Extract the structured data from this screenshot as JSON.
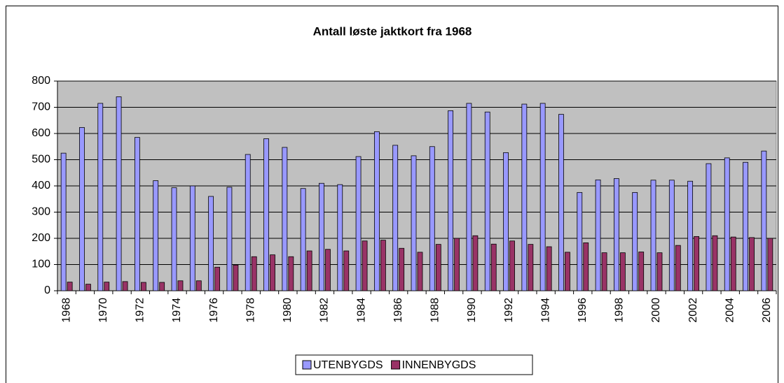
{
  "chart_data": {
    "type": "bar",
    "title": "Antall løste jaktkort fra 1968",
    "categories": [
      "1968",
      null,
      "1970",
      null,
      "1972",
      null,
      "1974",
      null,
      "1976",
      null,
      "1978",
      null,
      "1980",
      null,
      "1982",
      null,
      "1984",
      null,
      "1986",
      null,
      "1988",
      null,
      "1990",
      null,
      "1992",
      null,
      "1994",
      null,
      "1996",
      null,
      "1998",
      null,
      "2000",
      null,
      "2002",
      null,
      "2004",
      null,
      "2006"
    ],
    "series": [
      {
        "name": "UTENBYGDS",
        "color": "#9999ff",
        "values": [
          525,
          623,
          715,
          740,
          585,
          420,
          393,
          400,
          360,
          395,
          520,
          580,
          547,
          390,
          410,
          405,
          512,
          607,
          555,
          515,
          550,
          687,
          715,
          682,
          527,
          712,
          715,
          673,
          375,
          423,
          428,
          375,
          422,
          422,
          418,
          485,
          507,
          490,
          533
        ]
      },
      {
        "name": "INNENBYGDS",
        "color": "#993366",
        "values": [
          33,
          25,
          33,
          35,
          32,
          32,
          38,
          38,
          90,
          98,
          130,
          137,
          130,
          152,
          158,
          152,
          190,
          193,
          162,
          147,
          177,
          200,
          210,
          178,
          190,
          177,
          168,
          147,
          183,
          145,
          145,
          148,
          145,
          173,
          207,
          210,
          205,
          203,
          200
        ]
      }
    ],
    "ylim": [
      0,
      800
    ],
    "yticks": [
      0,
      100,
      200,
      300,
      400,
      500,
      600,
      700,
      800
    ],
    "grid": true,
    "plot_background": "#c0c0c0",
    "legend": "bottom"
  }
}
